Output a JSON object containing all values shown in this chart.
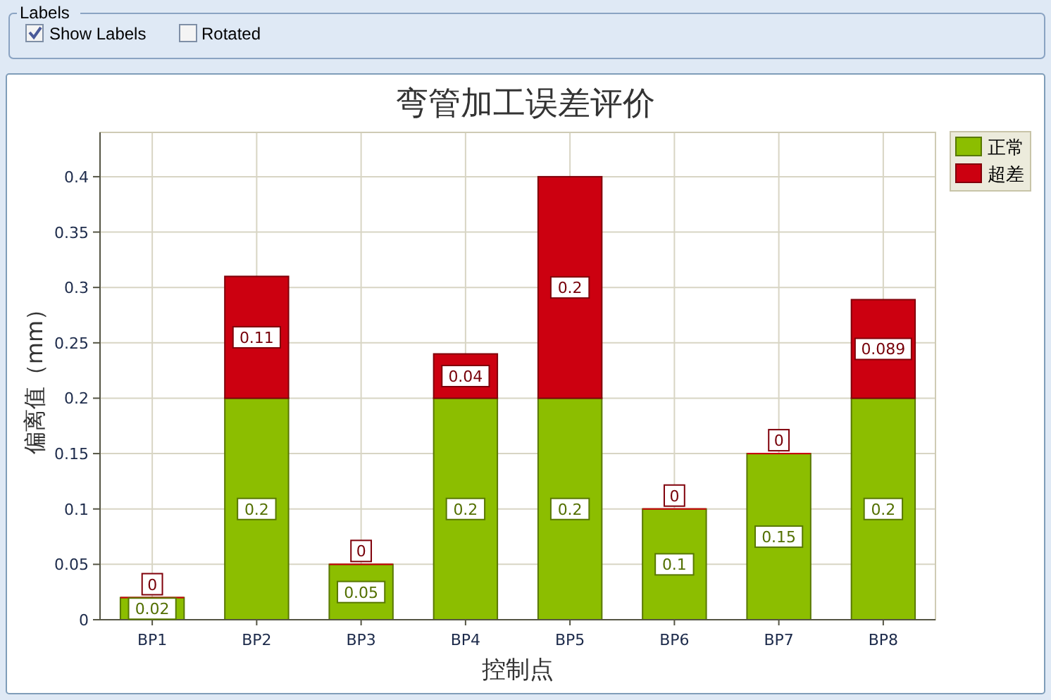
{
  "chart_data": {
    "type": "bar",
    "title": "弯管加工误差评价",
    "xlabel": "控制点",
    "ylabel": "偏离值（mm）",
    "annotations": [
      "Labels",
      "Show Labels",
      "Rotated"
    ],
    "categories": [
      "BP1",
      "BP2",
      "BP3",
      "BP4",
      "BP5",
      "BP6",
      "BP7",
      "BP8"
    ],
    "series": [
      {
        "name": "正常",
        "color": "#8cbe00",
        "values": [
          0.02,
          0.2,
          0.05,
          0.2,
          0.2,
          0.1,
          0.15,
          0.2
        ]
      },
      {
        "name": "超差",
        "color": "#cc0010",
        "values": [
          0,
          0.11,
          0,
          0.04,
          0.2,
          0,
          0,
          0.089
        ]
      }
    ],
    "stacked": true,
    "data_labels": true,
    "ylim": [
      0,
      0.44
    ],
    "yticks": [
      0,
      0.05,
      0.1,
      0.15,
      0.2,
      0.25,
      0.3,
      0.35,
      0.4
    ],
    "grid": true,
    "legend": "top right"
  }
}
